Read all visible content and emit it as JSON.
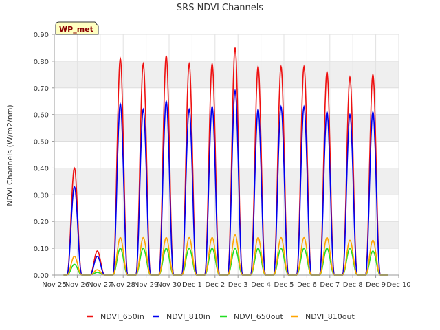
{
  "chart_data": {
    "type": "line",
    "title": "SRS NDVI Channels",
    "ylabel": "NDVI Channels (W/m2/nm)",
    "xlabel": "",
    "badge": "WP_met",
    "ylim": [
      0.0,
      0.9
    ],
    "yticks": [
      "0.00",
      "0.10",
      "0.20",
      "0.30",
      "0.40",
      "0.50",
      "0.60",
      "0.70",
      "0.80",
      "0.90"
    ],
    "xlim": [
      0,
      15
    ],
    "xticks": [
      "Nov 25",
      "Nov 26",
      "Nov 27",
      "Nov 28",
      "Nov 29",
      "Nov 30",
      "Dec 1",
      "Dec 2",
      "Dec 3",
      "Dec 4",
      "Dec 5",
      "Dec 6",
      "Dec 7",
      "Dec 8",
      "Dec 9",
      "Dec 10"
    ],
    "grid": true,
    "legend_position": "bottom",
    "day_peak_time": 0.5,
    "series": [
      {
        "name": "NDVI_650in",
        "color": "#ee1111",
        "peaks": [
          0.4,
          0.09,
          0.81,
          0.79,
          0.82,
          0.79,
          0.79,
          0.85,
          0.78,
          0.78,
          0.78,
          0.76,
          0.74,
          0.75
        ]
      },
      {
        "name": "NDVI_810in",
        "color": "#0000ee",
        "peaks": [
          0.33,
          0.07,
          0.64,
          0.62,
          0.65,
          0.62,
          0.63,
          0.69,
          0.62,
          0.63,
          0.63,
          0.61,
          0.6,
          0.61
        ]
      },
      {
        "name": "NDVI_650out",
        "color": "#22dd22",
        "peaks": [
          0.04,
          0.01,
          0.1,
          0.1,
          0.1,
          0.1,
          0.1,
          0.1,
          0.1,
          0.1,
          0.1,
          0.1,
          0.1,
          0.09
        ]
      },
      {
        "name": "NDVI_810out",
        "color": "#ffa500",
        "peaks": [
          0.07,
          0.02,
          0.14,
          0.14,
          0.14,
          0.14,
          0.14,
          0.15,
          0.14,
          0.14,
          0.14,
          0.14,
          0.13,
          0.13
        ]
      }
    ],
    "day_starts": [
      0.55,
      1.55,
      2.55,
      3.55,
      4.55,
      5.55,
      6.55,
      7.55,
      8.55,
      9.55,
      10.55,
      11.55,
      12.55,
      13.55
    ],
    "day_ends": [
      1.2,
      2.2,
      3.2,
      4.2,
      5.2,
      6.2,
      7.2,
      8.2,
      9.2,
      10.2,
      11.2,
      12.2,
      13.2,
      14.2
    ],
    "series_start": 0.4,
    "series_end": 14.55
  }
}
